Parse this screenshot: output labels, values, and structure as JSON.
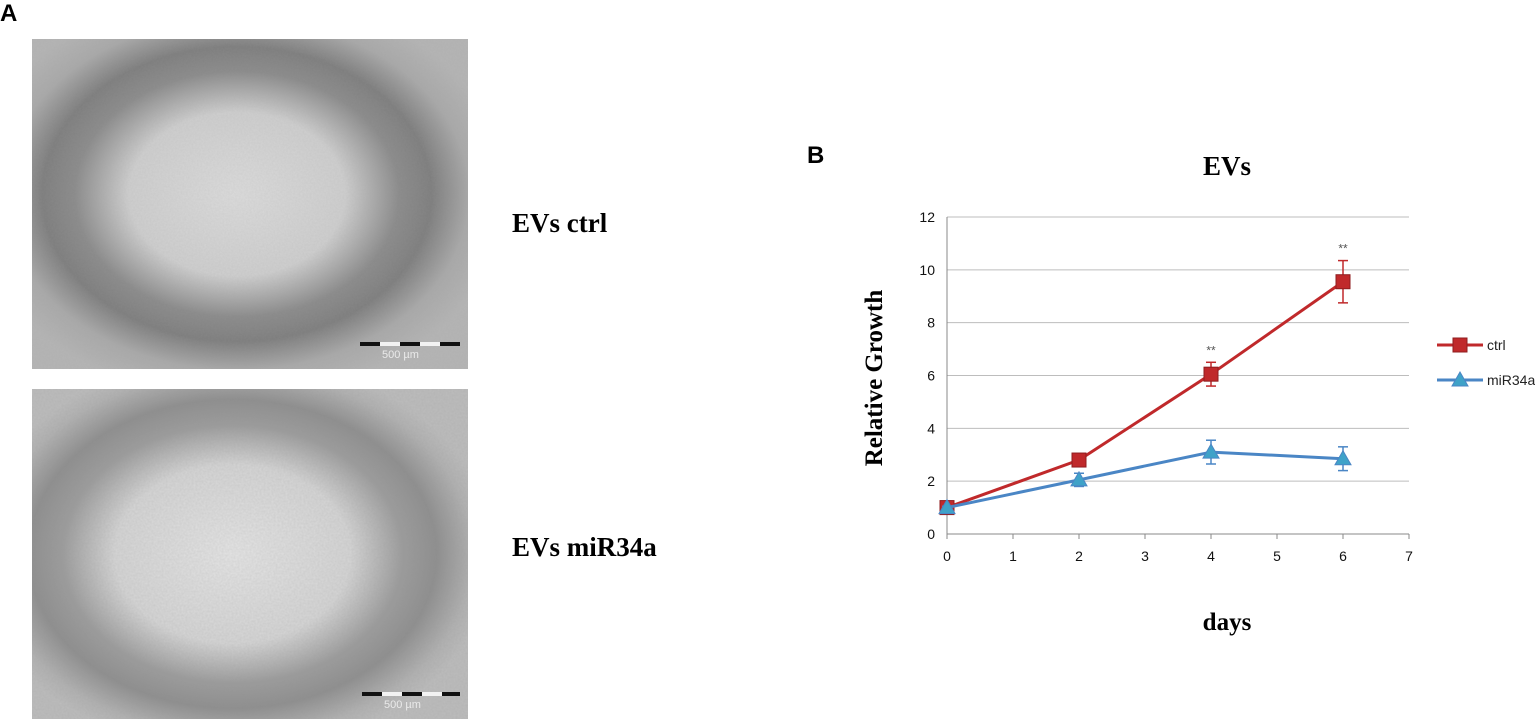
{
  "panels": {
    "a_letter": "A",
    "b_letter": "B"
  },
  "images": {
    "top": {
      "label": "EVs ctrl",
      "scalebar_text": "500 µm"
    },
    "bottom": {
      "label": "EVs miR34a",
      "scalebar_text": "500 µm"
    }
  },
  "chart_data": {
    "type": "line",
    "title": "EVs",
    "xlabel": "days",
    "ylabel": "Relative Growth",
    "xlim": [
      0,
      7
    ],
    "ylim": [
      0,
      12
    ],
    "x_ticks": [
      0,
      1,
      2,
      3,
      4,
      5,
      6,
      7
    ],
    "y_ticks": [
      0,
      2,
      4,
      6,
      8,
      10,
      12
    ],
    "grid": "horizontal",
    "legend_position": "right",
    "series": [
      {
        "name": "ctrl",
        "color": "#c0292b",
        "marker": "square",
        "x": [
          0,
          2,
          4,
          6
        ],
        "y": [
          1.0,
          2.8,
          6.05,
          9.55
        ],
        "error": [
          0.05,
          0.1,
          0.45,
          0.8
        ]
      },
      {
        "name": "miR34a",
        "color": "#4a86c5",
        "marker": "triangle",
        "x": [
          0,
          2,
          4,
          6
        ],
        "y": [
          1.0,
          2.05,
          3.1,
          2.85
        ],
        "error": [
          0.05,
          0.25,
          0.45,
          0.45
        ]
      }
    ],
    "annotations": [
      {
        "x": 4,
        "y": 6.5,
        "text": "**"
      },
      {
        "x": 6,
        "y": 10.35,
        "text": "**"
      }
    ]
  }
}
